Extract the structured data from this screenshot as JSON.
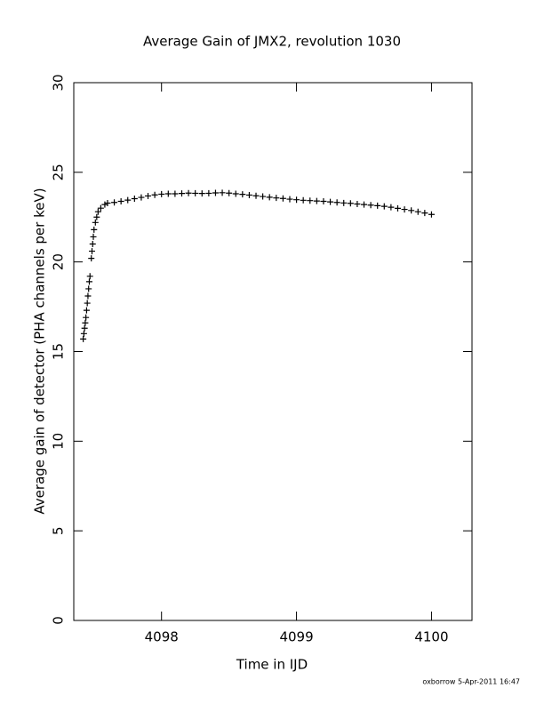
{
  "chart_data": {
    "type": "scatter",
    "title": "Average Gain of JMX2, revolution 1030",
    "x_label": "Time in IJD",
    "y_label": "Average gain of detector (PHA channels per keV)",
    "footer": "oxborrow  5-Apr-2011 16:47",
    "marker": "plus",
    "color": "#000000",
    "xlim": [
      4097.35,
      4100.3
    ],
    "xticks": [
      4098,
      4099,
      4100
    ],
    "ylim": [
      0,
      30
    ],
    "yticks": [
      0,
      5,
      10,
      15,
      20,
      25,
      30
    ],
    "series": [
      {
        "name": null,
        "color": "#000000",
        "x": [
          4097.42,
          4097.425,
          4097.43,
          4097.435,
          4097.44,
          4097.445,
          4097.45,
          4097.455,
          4097.46,
          4097.465,
          4097.47,
          4097.48,
          4097.485,
          4097.49,
          4097.495,
          4097.5,
          4097.51,
          4097.52,
          4097.53,
          4097.55,
          4097.58,
          4097.6,
          4097.65,
          4097.7,
          4097.75,
          4097.8,
          4097.85,
          4097.9,
          4097.95,
          4098.0,
          4098.05,
          4098.1,
          4098.15,
          4098.2,
          4098.25,
          4098.3,
          4098.35,
          4098.4,
          4098.45,
          4098.5,
          4098.55,
          4098.6,
          4098.65,
          4098.7,
          4098.75,
          4098.8,
          4098.85,
          4098.9,
          4098.95,
          4099.0,
          4099.05,
          4099.1,
          4099.15,
          4099.2,
          4099.25,
          4099.3,
          4099.35,
          4099.4,
          4099.45,
          4099.5,
          4099.55,
          4099.6,
          4099.65,
          4099.7,
          4099.75,
          4099.8,
          4099.85,
          4099.9,
          4099.95,
          4100.0
        ],
        "values": [
          15.7,
          16.0,
          16.3,
          16.6,
          16.9,
          17.3,
          17.7,
          18.1,
          18.5,
          18.9,
          19.2,
          20.2,
          20.6,
          21.0,
          21.4,
          21.8,
          22.2,
          22.5,
          22.8,
          23.0,
          23.2,
          23.28,
          23.32,
          23.38,
          23.45,
          23.53,
          23.6,
          23.68,
          23.74,
          23.78,
          23.8,
          23.8,
          23.82,
          23.84,
          23.83,
          23.82,
          23.83,
          23.85,
          23.86,
          23.84,
          23.8,
          23.77,
          23.73,
          23.69,
          23.65,
          23.61,
          23.57,
          23.54,
          23.5,
          23.47,
          23.44,
          23.42,
          23.4,
          23.38,
          23.35,
          23.32,
          23.29,
          23.27,
          23.23,
          23.2,
          23.17,
          23.14,
          23.1,
          23.05,
          22.99,
          22.93,
          22.87,
          22.8,
          22.73,
          22.65
        ]
      }
    ]
  }
}
